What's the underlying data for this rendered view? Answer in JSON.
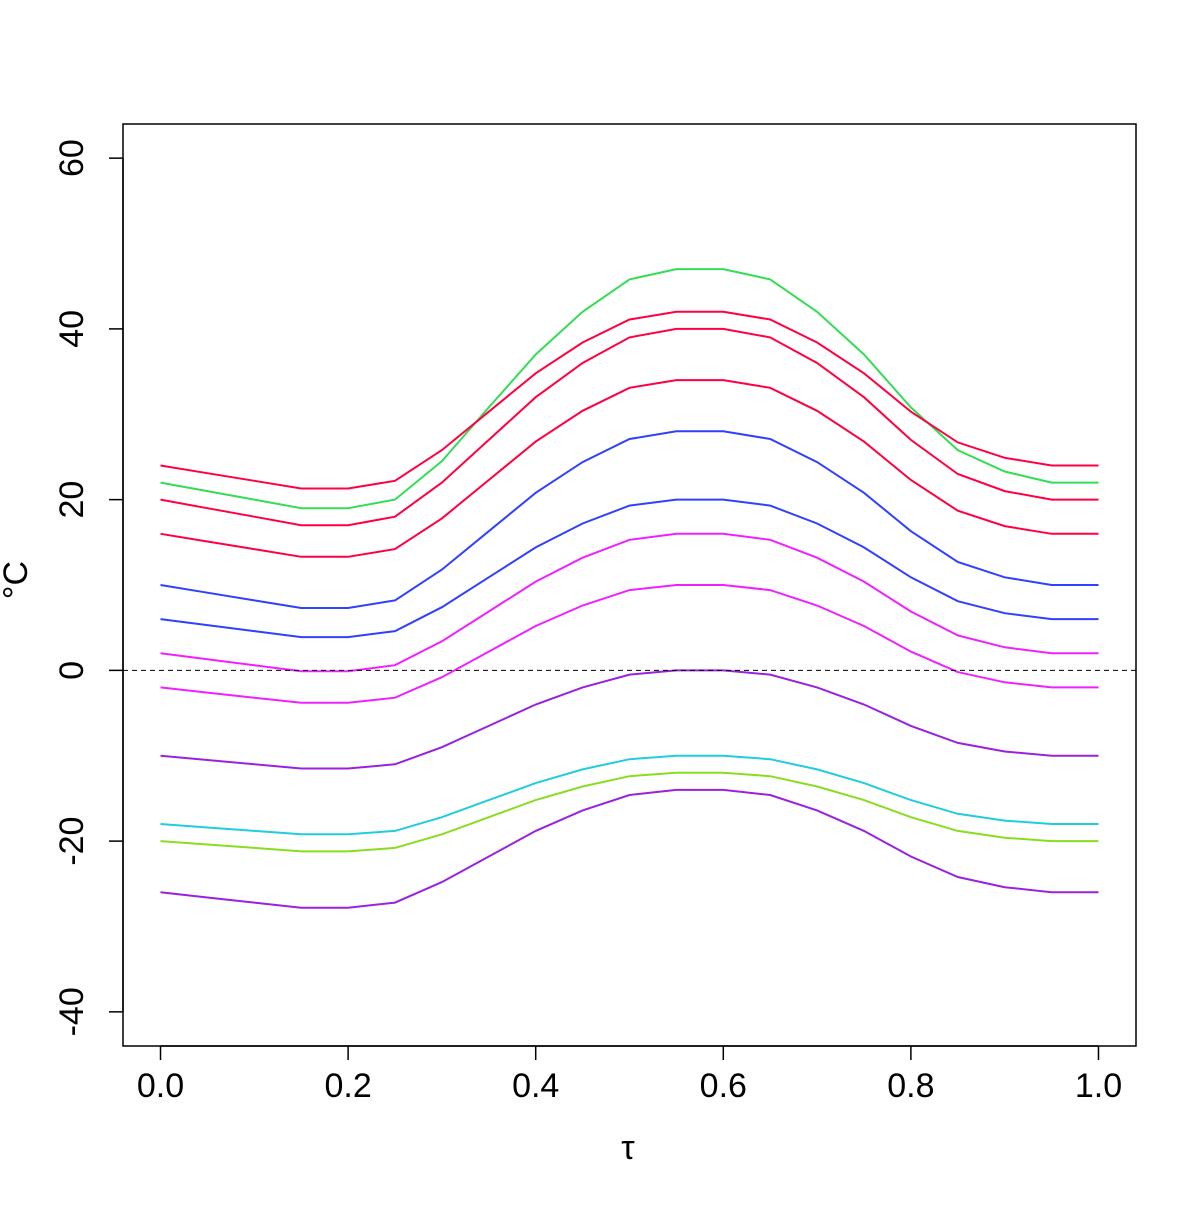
{
  "chart_data": {
    "type": "line",
    "x_label": "τ",
    "y_label": "°C",
    "xlim": [
      -0.04,
      1.04
    ],
    "ylim": [
      -44,
      64
    ],
    "xticks": [
      {
        "value": 0,
        "label": "0.0"
      },
      0.2,
      0.4,
      0.6,
      0.8,
      {
        "value": 1,
        "label": "1.0"
      }
    ],
    "yticks": [
      -40,
      -20,
      0,
      20,
      40,
      60
    ],
    "reference_line": 0,
    "x": [
      0,
      0.05,
      0.1,
      0.15,
      0.2,
      0.25,
      0.3,
      0.35,
      0.4,
      0.45,
      0.5,
      0.55,
      0.6,
      0.65,
      0.7,
      0.75,
      0.8,
      0.85,
      0.9,
      0.95,
      1
    ],
    "series": [
      {
        "color": "#9922dd",
        "values": [
          -26,
          -26.6,
          -27.2,
          -27.8,
          -27.8,
          -27.2,
          -24.8,
          -21.8,
          -18.8,
          -16.4,
          -14.6,
          -14,
          -14,
          -14.6,
          -16.4,
          -18.8,
          -21.8,
          -24.2,
          -25.4,
          -26,
          -26
        ]
      },
      {
        "color": "#88dd22",
        "values": [
          -20,
          -20.4,
          -20.8,
          -21.2,
          -21.2,
          -20.8,
          -19.2,
          -17.2,
          -15.2,
          -13.6,
          -12.4,
          -12,
          -12,
          -12.4,
          -13.6,
          -15.2,
          -17.2,
          -18.8,
          -19.6,
          -20,
          -20
        ]
      },
      {
        "color": "#22ccdd",
        "values": [
          -18,
          -18.4,
          -18.8,
          -19.2,
          -19.2,
          -18.8,
          -17.2,
          -15.2,
          -13.2,
          -11.6,
          -10.4,
          -10,
          -10,
          -10.4,
          -11.6,
          -13.2,
          -15.2,
          -16.8,
          -17.6,
          -18,
          -18
        ]
      },
      {
        "color": "#9922dd",
        "values": [
          -10,
          -10.5,
          -11,
          -11.5,
          -11.5,
          -11,
          -9,
          -6.5,
          -4,
          -2,
          -0.5,
          0,
          0,
          -0.5,
          -2,
          -4,
          -6.5,
          -8.5,
          -9.5,
          -10,
          -10
        ]
      },
      {
        "color": "#ee22ff",
        "values": [
          -2,
          -2.6,
          -3.2,
          -3.8,
          -3.8,
          -3.2,
          -0.8,
          2.2,
          5.2,
          7.6,
          9.4,
          10,
          10,
          9.4,
          7.6,
          5.2,
          2.2,
          -0.2,
          -1.4,
          -2,
          -2
        ]
      },
      {
        "color": "#ee22ff",
        "values": [
          2,
          1.3,
          0.6,
          -0.1,
          -0.1,
          0.6,
          3.4,
          6.9,
          10.4,
          13.2,
          15.3,
          16,
          16,
          15.3,
          13.2,
          10.4,
          6.9,
          4.1,
          2.7,
          2,
          2
        ]
      },
      {
        "color": "#3040ff",
        "values": [
          6,
          5.3,
          4.6,
          3.9,
          3.9,
          4.6,
          7.4,
          10.9,
          14.4,
          17.2,
          19.3,
          20,
          20,
          19.3,
          17.2,
          14.4,
          10.9,
          8.1,
          6.7,
          6,
          6
        ]
      },
      {
        "color": "#3040ff",
        "values": [
          10,
          9.1,
          8.2,
          7.3,
          7.3,
          8.2,
          11.8,
          16.3,
          20.8,
          24.4,
          27.1,
          28,
          28,
          27.1,
          24.4,
          20.8,
          16.3,
          12.7,
          10.9,
          10,
          10
        ]
      },
      {
        "color": "#33dd55",
        "values": [
          22,
          21,
          20,
          19,
          19,
          20,
          24.5,
          30.8,
          37,
          42,
          45.8,
          47,
          47,
          45.8,
          42,
          37,
          30.8,
          25.8,
          23.3,
          22,
          22
        ]
      },
      {
        "color": "#ff0040",
        "values": [
          16,
          15.1,
          14.2,
          13.3,
          13.3,
          14.2,
          17.8,
          22.3,
          26.8,
          30.4,
          33.1,
          34,
          34,
          33.1,
          30.4,
          26.8,
          22.3,
          18.7,
          16.9,
          16,
          16
        ]
      },
      {
        "color": "#ff0040",
        "values": [
          24,
          23.1,
          22.2,
          21.3,
          21.3,
          22.2,
          25.8,
          30.3,
          34.8,
          38.4,
          41.1,
          42,
          42,
          41.1,
          38.4,
          34.8,
          30.3,
          26.7,
          24.9,
          24,
          24
        ]
      },
      {
        "color": "#ff0040",
        "values": [
          20,
          19,
          18,
          17,
          17,
          18,
          22,
          27,
          32,
          36,
          39,
          40,
          40,
          39,
          36,
          32,
          27,
          23,
          21,
          20,
          20
        ]
      }
    ]
  }
}
